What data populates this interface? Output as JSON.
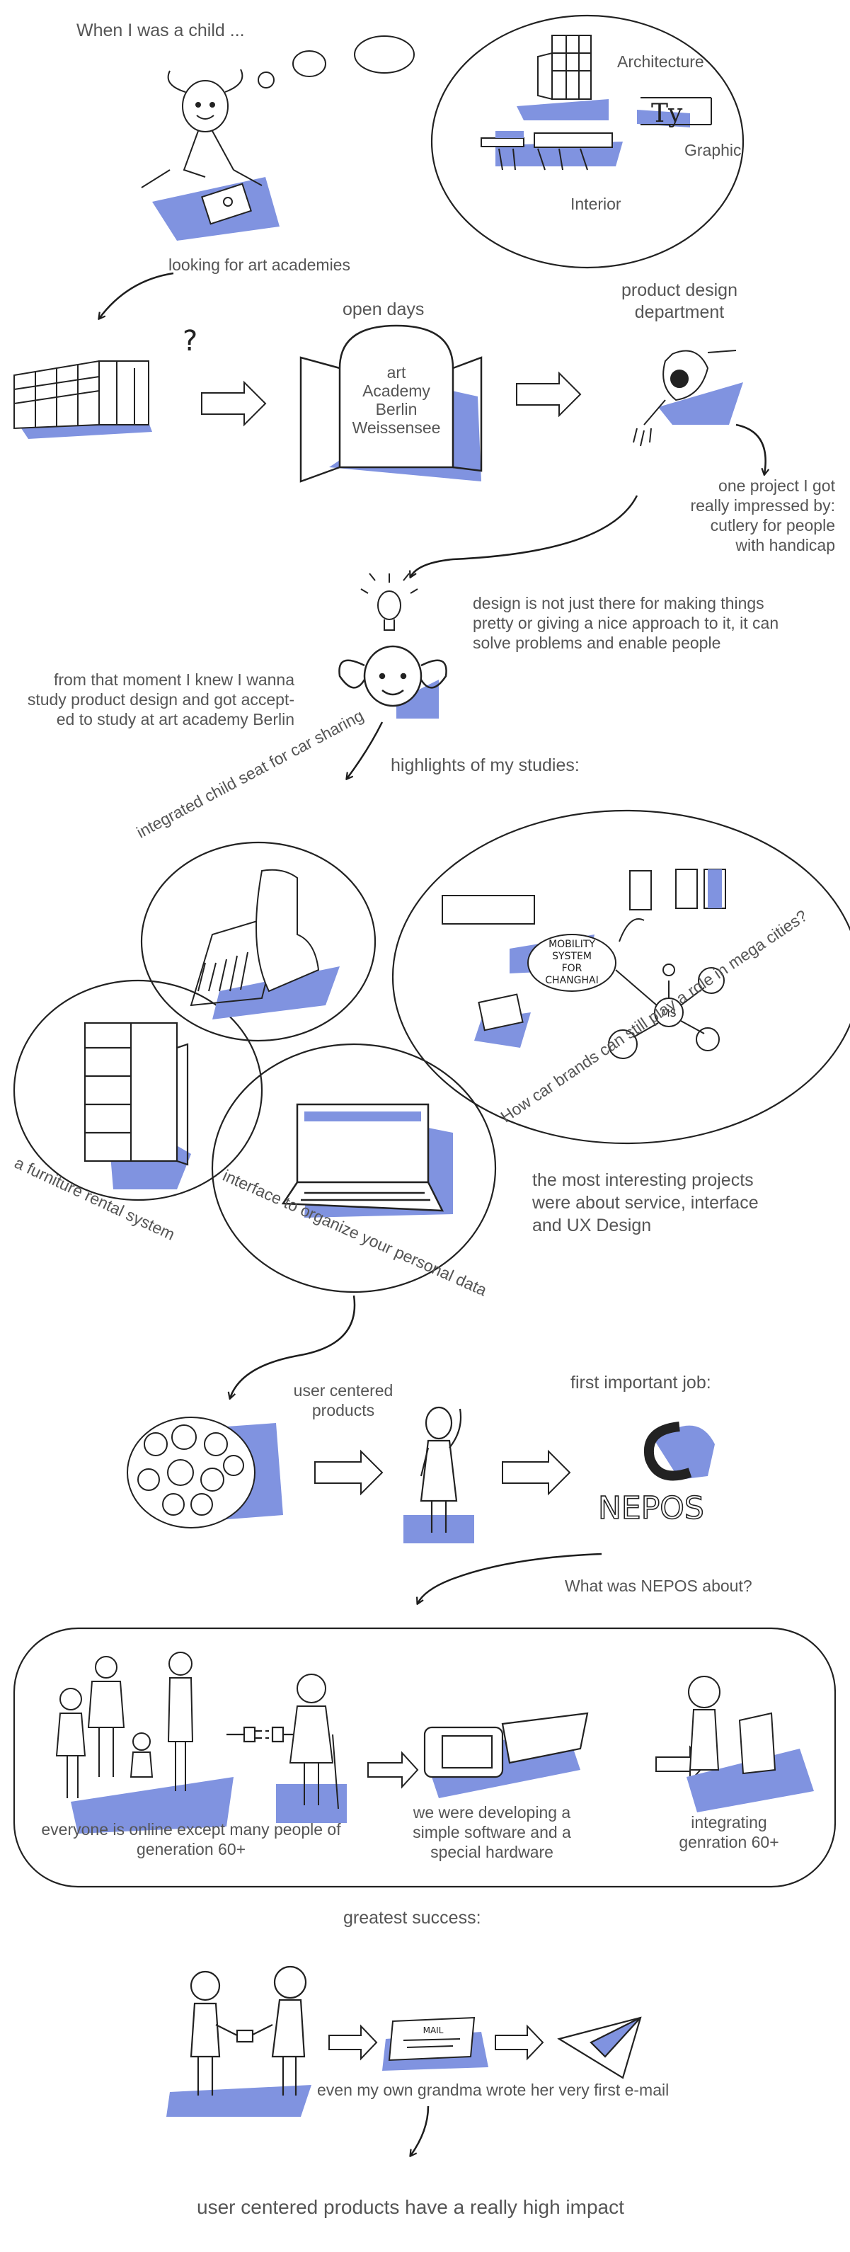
{
  "intro": "When I was a child ...",
  "dream": {
    "architecture": "Architecture",
    "graphic": "Graphic",
    "interior": "Interior",
    "typo_glyph": "Ty"
  },
  "looking": "looking for art academies",
  "open_days": "open days",
  "door_sign": [
    "art",
    "Academy",
    "Berlin",
    "Weissensee"
  ],
  "question_mark": "?",
  "pd_department": [
    "product design",
    "department"
  ],
  "impressed": [
    "one project I got",
    "really impressed by:",
    "cutlery for people",
    "with handicap"
  ],
  "design_quote": [
    "design is not just there for making things",
    "pretty or giving a nice approach to it, it can",
    "solve problems and enable people"
  ],
  "knew": [
    "from that moment I knew I wanna",
    "study product design and got accept-",
    "ed to study at art academy Berlin"
  ],
  "highlights": "highlights of my studies:",
  "projects": {
    "child_seat": "integrated child seat for car sharing",
    "car_brands": "How car brands can still play a role in mega cities?",
    "furniture": "a furniture rental system",
    "interface": "interface to organize your personal data",
    "mobility_sketch": [
      "MOBILITY",
      "SYSTEM",
      "FOR",
      "CHANGHAI"
    ],
    "ms_label": "MS"
  },
  "interesting": [
    "the most interesting projects",
    "were about service, interface",
    "and UX Design"
  ],
  "user_centered_label": [
    "user centered",
    "products"
  ],
  "first_job": "first important job:",
  "nepos_logo": "NEPOS",
  "nepos_question": "What was NEPOS about?",
  "nepos": {
    "online": [
      "everyone is online except many people of",
      "generation 60+"
    ],
    "developing": [
      "we were developing a",
      "simple software and a",
      "special hardware"
    ],
    "integrating": [
      "integrating",
      "genration 60+"
    ]
  },
  "greatest": "greatest success:",
  "mail_label": "MAIL",
  "grandma": "even my own grandma wrote her very first e-mail",
  "conclusion": "user centered products have a really high impact",
  "colors": {
    "accent": "#8093e0",
    "ink": "#1d1d1d",
    "text": "#555555",
    "background": "#ffffff"
  }
}
